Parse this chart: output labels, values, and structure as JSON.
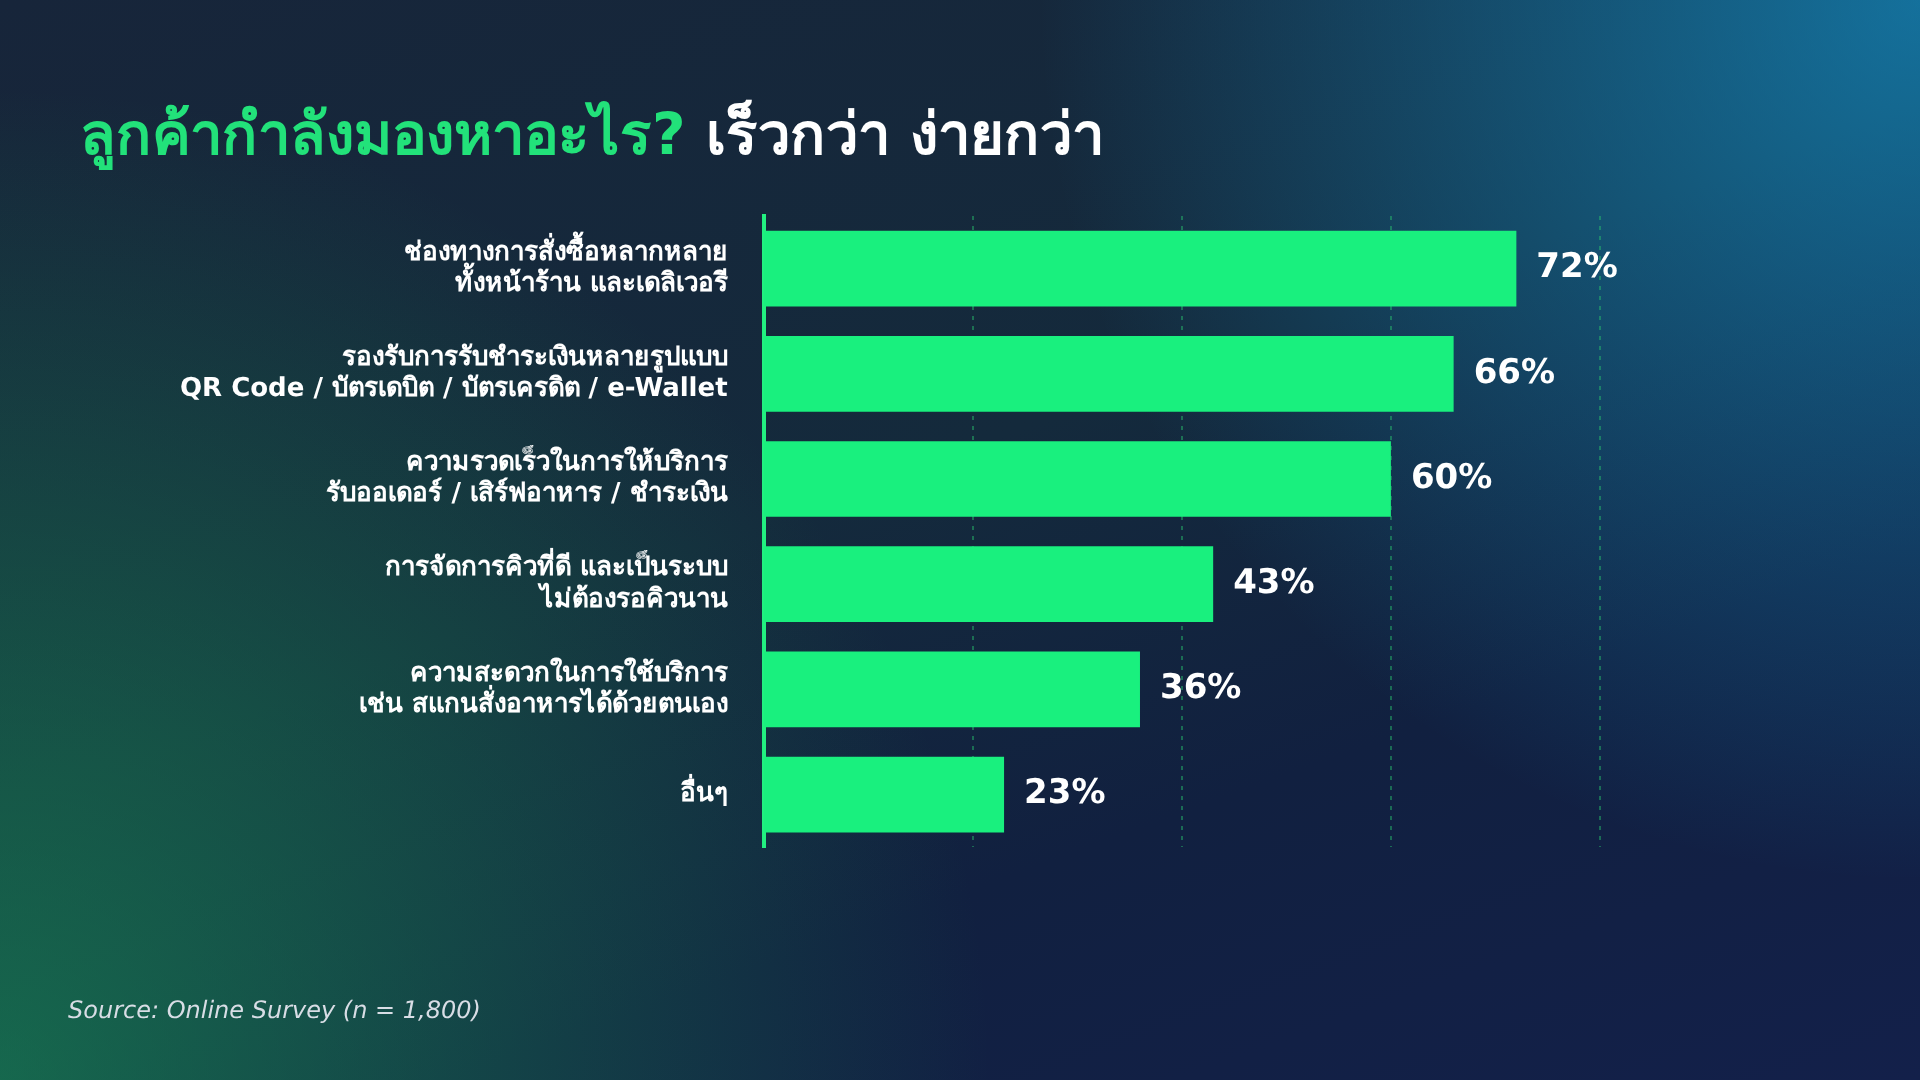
{
  "chart_data": {
    "type": "bar",
    "orientation": "horizontal",
    "title": "ลูกค้ากำลังมองหาอะไร? เร็วกว่า ง่ายกว่า",
    "categories": [
      "ช่องทางการสั่งซื้อหลากหลาย\nทั้งหน้าร้าน และเดลิเวอรี",
      "รองรับการรับชำระเงินหลายรูปแบบ\nQR Code / บัตรเดบิต / บัตรเครดิต / e-Wallet",
      "ความรวดเร็วในการให้บริการ\nรับออเดอร์ / เสิร์ฟอาหาร / ชำระเงิน",
      "การจัดการคิวที่ดี และเป็นระบบ\nไม่ต้องรอคิวนาน",
      "ความสะดวกในการใช้บริการ\nเช่น สแกนสั่งอาหารได้ด้วยตนเอง",
      "อื่นๆ"
    ],
    "values": [
      72,
      66,
      60,
      43,
      36,
      23
    ],
    "value_labels": [
      "72%",
      "66%",
      "60%",
      "43%",
      "36%",
      "23%"
    ],
    "color": "#19f07e",
    "xlim": [
      0,
      80
    ],
    "xticks": [
      {
        "value": 20,
        "label": null
      },
      {
        "value": 40,
        "label": null
      },
      {
        "value": 60,
        "label": null
      },
      {
        "value": 80,
        "label": null
      }
    ],
    "grid": "x",
    "annotations": [
      "Source: Online Survey (n = 1,800)"
    ]
  }
}
